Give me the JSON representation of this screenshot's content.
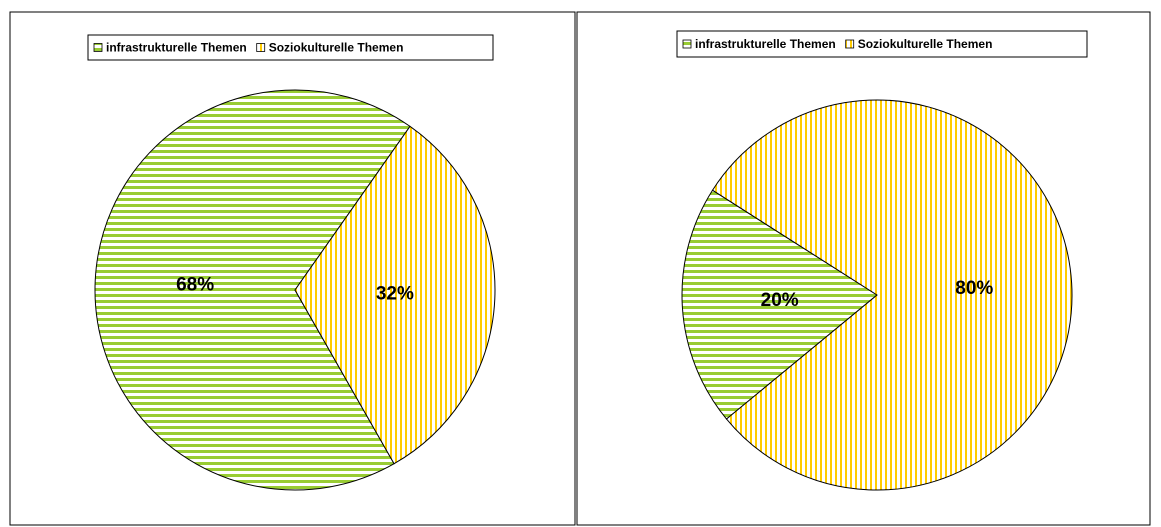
{
  "chart_data": [
    {
      "type": "pie",
      "categories": [
        "infrastrukturelle Themen",
        "Soziokulturelle Themen"
      ],
      "values": [
        68,
        32
      ],
      "value_labels": [
        "68%",
        "32%"
      ],
      "colors": [
        "#99cc33",
        "#ffcc00"
      ]
    },
    {
      "type": "pie",
      "categories": [
        "infrastrukturelle Themen",
        "Soziokulturelle Themen"
      ],
      "values": [
        20,
        80
      ],
      "value_labels": [
        "20%",
        "80%"
      ],
      "colors": [
        "#99cc33",
        "#ffcc00"
      ]
    }
  ]
}
